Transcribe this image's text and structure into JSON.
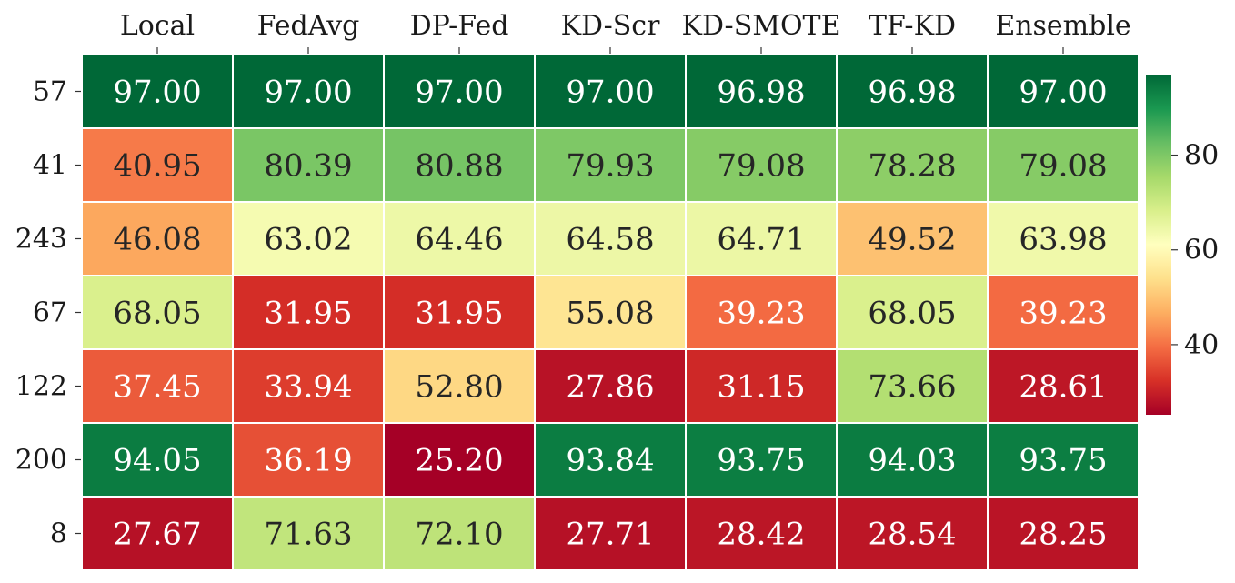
{
  "chart_data": {
    "type": "heatmap",
    "title": "",
    "xlabel": "",
    "ylabel": "",
    "columns": [
      "Local",
      "FedAvg",
      "DP-Fed",
      "KD-Scr",
      "KD-SMOTE",
      "TF-KD",
      "Ensemble"
    ],
    "rows": [
      "57",
      "41",
      "243",
      "67",
      "122",
      "200",
      "8"
    ],
    "values": [
      [
        "97.00",
        "97.00",
        "97.00",
        "97.00",
        "96.98",
        "96.98",
        "97.00"
      ],
      [
        "40.95",
        "80.39",
        "80.88",
        "79.93",
        "79.08",
        "78.28",
        "79.08"
      ],
      [
        "46.08",
        "63.02",
        "64.46",
        "64.58",
        "64.71",
        "49.52",
        "63.98"
      ],
      [
        "68.05",
        "31.95",
        "31.95",
        "55.08",
        "39.23",
        "68.05",
        "39.23"
      ],
      [
        "37.45",
        "33.94",
        "52.80",
        "27.86",
        "31.15",
        "73.66",
        "28.61"
      ],
      [
        "94.05",
        "36.19",
        "25.20",
        "93.84",
        "93.75",
        "94.03",
        "93.75"
      ],
      [
        "27.67",
        "71.63",
        "72.10",
        "27.71",
        "28.42",
        "28.54",
        "28.25"
      ]
    ],
    "colormap": "RdYlGn",
    "vmin": 25.2,
    "vmax": 97.0,
    "colorbar_ticks": [
      "40",
      "60",
      "80"
    ],
    "colorbar_tick_values": [
      40,
      60,
      80
    ],
    "grid": false,
    "legend": "colorbar-right",
    "cell_border_color": "#ffffff"
  }
}
